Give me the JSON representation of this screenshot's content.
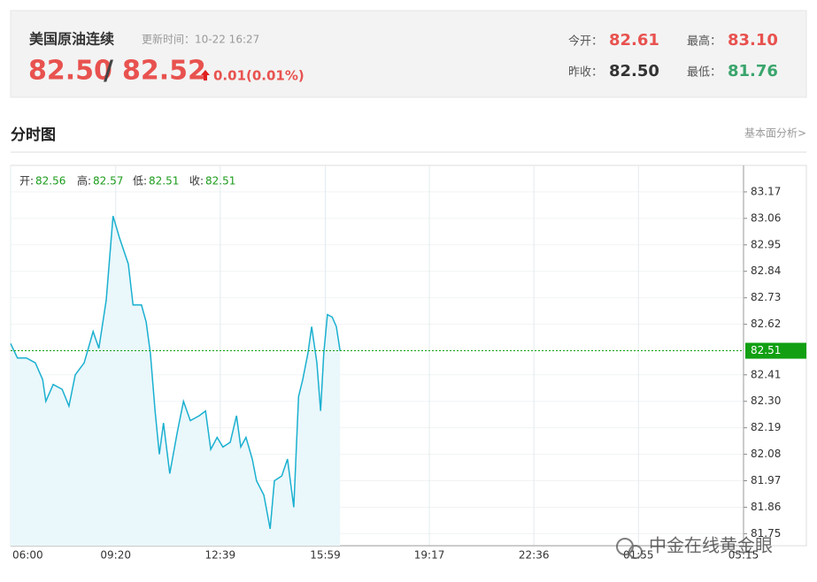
{
  "header": {
    "name": "美国原油连续",
    "update": "更新时间：10-22 16:27",
    "bid": "82.50",
    "separator": "/",
    "ask": "82.52",
    "change": "0.01(0.01%)",
    "stats": [
      {
        "label": "今开：",
        "value": "82.61"
      },
      {
        "label": "最高：",
        "value": "83.10"
      },
      {
        "label": "昨收：",
        "value": "82.50"
      },
      {
        "label": "最低：",
        "value": "81.76"
      }
    ]
  },
  "section": {
    "title": "分时图",
    "link": "基本面分析>"
  },
  "watermark": "中金在线黄金眼",
  "chart_data": {
    "type": "line",
    "ohlc": [
      {
        "label": "开:",
        "value": 82.56
      },
      {
        "label": "高:",
        "value": 82.57
      },
      {
        "label": "低:",
        "value": 82.51
      },
      {
        "label": "收:",
        "value": 82.51
      }
    ],
    "x": [
      0,
      13,
      30,
      47,
      61,
      67,
      81,
      98,
      111,
      123,
      140,
      157,
      168,
      182,
      195,
      207,
      224,
      233,
      249,
      258,
      266,
      275,
      283,
      291,
      303,
      317,
      329,
      342,
      359,
      371,
      381,
      393,
      404,
      418,
      430,
      438,
      448,
      460,
      468,
      482,
      494,
      502,
      516,
      527,
      539,
      548,
      556,
      566,
      573,
      583,
      590,
      596,
      603,
      612,
      620,
      627
    ],
    "values": [
      82.54,
      82.48,
      82.48,
      82.46,
      82.39,
      82.3,
      82.37,
      82.35,
      82.28,
      82.41,
      82.46,
      82.59,
      82.52,
      82.72,
      83.07,
      82.98,
      82.87,
      82.7,
      82.7,
      82.63,
      82.5,
      82.26,
      82.08,
      82.21,
      82.0,
      82.17,
      82.3,
      82.22,
      82.24,
      82.26,
      82.1,
      82.15,
      82.11,
      82.13,
      82.24,
      82.11,
      82.15,
      82.06,
      81.97,
      81.91,
      81.77,
      81.97,
      81.99,
      82.06,
      81.86,
      82.32,
      82.39,
      82.5,
      82.61,
      82.46,
      82.26,
      82.5,
      82.66,
      82.65,
      82.61,
      82.51
    ],
    "color": "#1ab0d0",
    "last": 82.51,
    "xlim": [
      0,
      1395
    ],
    "xticks": [
      {
        "value": 0,
        "label": "06:00"
      },
      {
        "value": 200,
        "label": "09:20"
      },
      {
        "value": 399,
        "label": "12:39"
      },
      {
        "value": 599,
        "label": "15:59"
      },
      {
        "value": 797,
        "label": "19:17"
      },
      {
        "value": 996,
        "label": "22:36"
      },
      {
        "value": 1195,
        "label": "01:55"
      },
      {
        "value": 1395,
        "label": "05:15"
      }
    ],
    "ylim": [
      81.7,
      83.28
    ],
    "yticks": [
      83.17,
      83.06,
      82.95,
      82.84,
      82.73,
      82.62,
      82.41,
      {
        "value": 82.3,
        "label": "82.30"
      },
      82.19,
      82.08,
      81.97,
      81.86,
      81.75
    ],
    "grid": true
  }
}
